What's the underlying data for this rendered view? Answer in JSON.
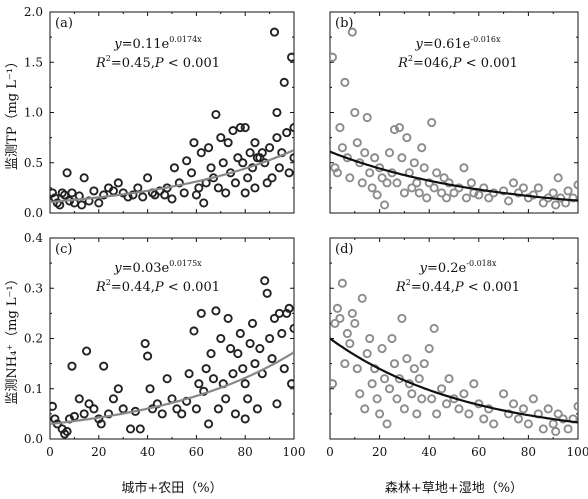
{
  "chart_data": [
    {
      "panel_label": "(a)",
      "type": "scatter",
      "marker_color": "#222222",
      "fit_color": "#888888",
      "xlim": [
        0,
        100
      ],
      "ylim": [
        0,
        2.0
      ],
      "xticks": [
        "0",
        "20",
        "40",
        "60",
        "80",
        "100"
      ],
      "yticks": [
        "0.0",
        "0.5",
        "1.0",
        "1.5",
        "2.0"
      ],
      "ylabel": "监测TP（mg L⁻¹）",
      "equation": {
        "lhs": "y",
        "rhs": "=0.11e",
        "exp": "0.0174x"
      },
      "stats": {
        "lhs": "R",
        "sup": "2",
        "rhs": "=0.45,",
        "p": "P",
        "ptail": "< 0.001"
      },
      "fit": {
        "a": 0.11,
        "b": 0.0174
      },
      "points": [
        [
          1,
          0.2
        ],
        [
          2,
          0.15
        ],
        [
          3,
          0.1
        ],
        [
          4,
          0.08
        ],
        [
          5,
          0.2
        ],
        [
          6,
          0.18
        ],
        [
          7,
          0.4
        ],
        [
          8,
          0.12
        ],
        [
          9,
          0.2
        ],
        [
          10,
          0.1
        ],
        [
          12,
          0.17
        ],
        [
          13,
          0.08
        ],
        [
          14,
          0.35
        ],
        [
          16,
          0.12
        ],
        [
          18,
          0.22
        ],
        [
          20,
          0.1
        ],
        [
          22,
          0.18
        ],
        [
          24,
          0.25
        ],
        [
          26,
          0.22
        ],
        [
          28,
          0.3
        ],
        [
          30,
          0.2
        ],
        [
          32,
          0.16
        ],
        [
          34,
          0.18
        ],
        [
          36,
          0.25
        ],
        [
          38,
          0.16
        ],
        [
          40,
          0.35
        ],
        [
          42,
          0.2
        ],
        [
          43,
          0.18
        ],
        [
          45,
          0.22
        ],
        [
          47,
          0.18
        ],
        [
          48,
          0.25
        ],
        [
          50,
          0.14
        ],
        [
          51,
          0.45
        ],
        [
          53,
          0.3
        ],
        [
          55,
          0.2
        ],
        [
          56,
          0.52
        ],
        [
          58,
          0.4
        ],
        [
          59,
          0.7
        ],
        [
          60,
          0.18
        ],
        [
          61,
          0.25
        ],
        [
          62,
          0.6
        ],
        [
          63,
          0.1
        ],
        [
          64,
          0.3
        ],
        [
          65,
          0.65
        ],
        [
          66,
          0.45
        ],
        [
          67,
          0.35
        ],
        [
          68,
          0.98
        ],
        [
          69,
          0.25
        ],
        [
          70,
          0.75
        ],
        [
          71,
          0.5
        ],
        [
          72,
          0.2
        ],
        [
          73,
          0.7
        ],
        [
          74,
          0.4
        ],
        [
          75,
          0.82
        ],
        [
          76,
          0.3
        ],
        [
          77,
          0.55
        ],
        [
          78,
          0.85
        ],
        [
          79,
          0.5
        ],
        [
          80,
          0.2
        ],
        [
          80,
          0.85
        ],
        [
          81,
          0.35
        ],
        [
          82,
          0.6
        ],
        [
          83,
          0.45
        ],
        [
          84,
          0.25
        ],
        [
          84,
          0.7
        ],
        [
          85,
          0.55
        ],
        [
          86,
          0.55
        ],
        [
          87,
          0.6
        ],
        [
          88,
          0.5
        ],
        [
          89,
          0.3
        ],
        [
          90,
          0.65
        ],
        [
          91,
          0.35
        ],
        [
          92,
          1.8
        ],
        [
          93,
          0.75
        ],
        [
          93,
          1.0
        ],
        [
          94,
          0.45
        ],
        [
          95,
          0.6
        ],
        [
          96,
          1.3
        ],
        [
          97,
          0.8
        ],
        [
          98,
          0.4
        ],
        [
          99,
          1.55
        ],
        [
          100,
          0.55
        ],
        [
          100,
          0.85
        ]
      ]
    },
    {
      "panel_label": "(b)",
      "type": "scatter",
      "marker_color": "#8c8c8c",
      "fit_color": "#111111",
      "xlim": [
        0,
        100
      ],
      "ylim": [
        0,
        2.0
      ],
      "xticks": [
        "0",
        "20",
        "40",
        "60",
        "80",
        "100"
      ],
      "yticks": [],
      "ylabel": "",
      "equation": {
        "lhs": "y",
        "rhs": "=0.61e",
        "exp": "-0.016x"
      },
      "stats": {
        "lhs": "R",
        "sup": "2",
        "rhs": "=046,",
        "p": "P",
        "ptail": "< 0.001"
      },
      "fit": {
        "a": 0.61,
        "b": -0.016
      },
      "points": [
        [
          1,
          1.55
        ],
        [
          2,
          0.45
        ],
        [
          3,
          0.4
        ],
        [
          4,
          0.85
        ],
        [
          5,
          0.65
        ],
        [
          6,
          1.3
        ],
        [
          7,
          0.55
        ],
        [
          8,
          0.35
        ],
        [
          9,
          1.8
        ],
        [
          10,
          1.0
        ],
        [
          11,
          0.7
        ],
        [
          12,
          0.5
        ],
        [
          13,
          0.3
        ],
        [
          14,
          0.6
        ],
        [
          15,
          0.95
        ],
        [
          16,
          0.4
        ],
        [
          17,
          0.25
        ],
        [
          18,
          0.55
        ],
        [
          19,
          0.18
        ],
        [
          20,
          0.45
        ],
        [
          21,
          0.35
        ],
        [
          22,
          0.08
        ],
        [
          23,
          0.3
        ],
        [
          24,
          0.6
        ],
        [
          25,
          0.4
        ],
        [
          26,
          0.83
        ],
        [
          27,
          0.3
        ],
        [
          28,
          0.85
        ],
        [
          29,
          0.55
        ],
        [
          30,
          0.2
        ],
        [
          31,
          0.75
        ],
        [
          32,
          0.4
        ],
        [
          33,
          0.25
        ],
        [
          34,
          0.5
        ],
        [
          35,
          0.3
        ],
        [
          36,
          0.2
        ],
        [
          37,
          0.65
        ],
        [
          38,
          0.45
        ],
        [
          39,
          0.15
        ],
        [
          40,
          0.3
        ],
        [
          41,
          0.9
        ],
        [
          42,
          0.25
        ],
        [
          43,
          0.4
        ],
        [
          45,
          0.2
        ],
        [
          46,
          0.35
        ],
        [
          47,
          0.15
        ],
        [
          48,
          0.3
        ],
        [
          50,
          0.2
        ],
        [
          52,
          0.25
        ],
        [
          54,
          0.45
        ],
        [
          55,
          0.15
        ],
        [
          57,
          0.3
        ],
        [
          58,
          0.2
        ],
        [
          60,
          0.18
        ],
        [
          62,
          0.25
        ],
        [
          64,
          0.15
        ],
        [
          66,
          0.2
        ],
        [
          70,
          0.22
        ],
        [
          72,
          0.12
        ],
        [
          74,
          0.3
        ],
        [
          76,
          0.2
        ],
        [
          78,
          0.25
        ],
        [
          80,
          0.15
        ],
        [
          82,
          0.18
        ],
        [
          84,
          0.25
        ],
        [
          86,
          0.1
        ],
        [
          88,
          0.15
        ],
        [
          90,
          0.2
        ],
        [
          91,
          0.08
        ],
        [
          92,
          0.35
        ],
        [
          93,
          0.15
        ],
        [
          95,
          0.1
        ],
        [
          96,
          0.22
        ],
        [
          98,
          0.15
        ],
        [
          100,
          0.28
        ]
      ]
    },
    {
      "panel_label": "(c)",
      "type": "scatter",
      "marker_color": "#222222",
      "fit_color": "#888888",
      "xlim": [
        0,
        100
      ],
      "ylim": [
        0,
        0.4
      ],
      "xticks": [
        "0",
        "20",
        "40",
        "60",
        "80",
        "100"
      ],
      "yticks": [
        "0.0",
        "0.1",
        "0.2",
        "0.3",
        "0.4"
      ],
      "ylabel": "监测NH₄⁺（mg L⁻¹）",
      "equation": {
        "lhs": "y",
        "rhs": "=0.03e",
        "exp": "0.0175x"
      },
      "stats": {
        "lhs": "R",
        "sup": "2",
        "rhs": "=0.44,",
        "p": "P",
        "ptail": "< 0.001"
      },
      "fit": {
        "a": 0.03,
        "b": 0.0175
      },
      "points": [
        [
          1,
          0.065
        ],
        [
          2,
          0.04
        ],
        [
          3,
          0.03
        ],
        [
          5,
          0.02
        ],
        [
          6,
          0.01
        ],
        [
          7,
          0.015
        ],
        [
          8,
          0.04
        ],
        [
          9,
          0.145
        ],
        [
          10,
          0.045
        ],
        [
          12,
          0.08
        ],
        [
          14,
          0.05
        ],
        [
          15,
          0.175
        ],
        [
          16,
          0.07
        ],
        [
          18,
          0.06
        ],
        [
          20,
          0.04
        ],
        [
          21,
          0.03
        ],
        [
          22,
          0.145
        ],
        [
          24,
          0.05
        ],
        [
          26,
          0.08
        ],
        [
          28,
          0.1
        ],
        [
          30,
          0.06
        ],
        [
          33,
          0.02
        ],
        [
          35,
          0.055
        ],
        [
          37,
          0.02
        ],
        [
          39,
          0.19
        ],
        [
          40,
          0.165
        ],
        [
          41,
          0.1
        ],
        [
          42,
          0.06
        ],
        [
          44,
          0.07
        ],
        [
          46,
          0.05
        ],
        [
          48,
          0.12
        ],
        [
          50,
          0.08
        ],
        [
          52,
          0.06
        ],
        [
          54,
          0.05
        ],
        [
          56,
          0.075
        ],
        [
          57,
          0.13
        ],
        [
          59,
          0.215
        ],
        [
          60,
          0.06
        ],
        [
          61,
          0.11
        ],
        [
          62,
          0.25
        ],
        [
          63,
          0.095
        ],
        [
          64,
          0.14
        ],
        [
          65,
          0.03
        ],
        [
          66,
          0.17
        ],
        [
          67,
          0.12
        ],
        [
          68,
          0.255
        ],
        [
          69,
          0.06
        ],
        [
          70,
          0.2
        ],
        [
          71,
          0.11
        ],
        [
          72,
          0.08
        ],
        [
          73,
          0.24
        ],
        [
          74,
          0.18
        ],
        [
          75,
          0.13
        ],
        [
          76,
          0.05
        ],
        [
          77,
          0.17
        ],
        [
          78,
          0.21
        ],
        [
          79,
          0.14
        ],
        [
          80,
          0.04
        ],
        [
          80,
          0.11
        ],
        [
          81,
          0.08
        ],
        [
          82,
          0.19
        ],
        [
          83,
          0.23
        ],
        [
          84,
          0.15
        ],
        [
          85,
          0.06
        ],
        [
          86,
          0.18
        ],
        [
          87,
          0.13
        ],
        [
          88,
          0.315
        ],
        [
          89,
          0.29
        ],
        [
          90,
          0.2
        ],
        [
          91,
          0.16
        ],
        [
          92,
          0.24
        ],
        [
          93,
          0.07
        ],
        [
          94,
          0.25
        ],
        [
          95,
          0.21
        ],
        [
          96,
          0.14
        ],
        [
          97,
          0.25
        ],
        [
          98,
          0.26
        ],
        [
          99,
          0.11
        ],
        [
          100,
          0.22
        ]
      ]
    },
    {
      "panel_label": "(d)",
      "type": "scatter",
      "marker_color": "#8c8c8c",
      "fit_color": "#111111",
      "xlim": [
        0,
        100
      ],
      "ylim": [
        0,
        0.4
      ],
      "xticks": [
        "0",
        "20",
        "40",
        "60",
        "80",
        "100"
      ],
      "yticks": [],
      "ylabel": "",
      "equation": {
        "lhs": "y",
        "rhs": "=0.2e",
        "exp": "-0.018x"
      },
      "stats": {
        "lhs": "R",
        "sup": "2",
        "rhs": "=0.44,",
        "p": "P",
        "ptail": "< 0.001"
      },
      "fit": {
        "a": 0.2,
        "b": -0.018
      },
      "points": [
        [
          1,
          0.11
        ],
        [
          2,
          0.23
        ],
        [
          3,
          0.26
        ],
        [
          4,
          0.24
        ],
        [
          5,
          0.31
        ],
        [
          6,
          0.15
        ],
        [
          7,
          0.21
        ],
        [
          8,
          0.19
        ],
        [
          9,
          0.25
        ],
        [
          10,
          0.23
        ],
        [
          11,
          0.14
        ],
        [
          12,
          0.09
        ],
        [
          13,
          0.28
        ],
        [
          14,
          0.06
        ],
        [
          15,
          0.17
        ],
        [
          16,
          0.2
        ],
        [
          17,
          0.11
        ],
        [
          18,
          0.14
        ],
        [
          19,
          0.08
        ],
        [
          20,
          0.05
        ],
        [
          21,
          0.18
        ],
        [
          22,
          0.12
        ],
        [
          23,
          0.03
        ],
        [
          24,
          0.1
        ],
        [
          25,
          0.2
        ],
        [
          26,
          0.15
        ],
        [
          27,
          0.08
        ],
        [
          28,
          0.12
        ],
        [
          29,
          0.24
        ],
        [
          30,
          0.06
        ],
        [
          31,
          0.16
        ],
        [
          32,
          0.11
        ],
        [
          33,
          0.09
        ],
        [
          34,
          0.14
        ],
        [
          35,
          0.05
        ],
        [
          36,
          0.12
        ],
        [
          37,
          0.08
        ],
        [
          38,
          0.15
        ],
        [
          40,
          0.18
        ],
        [
          41,
          0.08
        ],
        [
          42,
          0.22
        ],
        [
          43,
          0.05
        ],
        [
          45,
          0.1
        ],
        [
          47,
          0.07
        ],
        [
          48,
          0.12
        ],
        [
          50,
          0.08
        ],
        [
          52,
          0.06
        ],
        [
          54,
          0.09
        ],
        [
          56,
          0.05
        ],
        [
          58,
          0.11
        ],
        [
          60,
          0.07
        ],
        [
          62,
          0.04
        ],
        [
          64,
          0.06
        ],
        [
          66,
          0.03
        ],
        [
          70,
          0.09
        ],
        [
          72,
          0.05
        ],
        [
          74,
          0.07
        ],
        [
          76,
          0.04
        ],
        [
          78,
          0.06
        ],
        [
          80,
          0.03
        ],
        [
          82,
          0.08
        ],
        [
          84,
          0.05
        ],
        [
          86,
          0.02
        ],
        [
          88,
          0.06
        ],
        [
          90,
          0.03
        ],
        [
          91,
          0.015
        ],
        [
          92,
          0.05
        ],
        [
          94,
          0.04
        ],
        [
          96,
          0.02
        ],
        [
          98,
          0.04
        ],
        [
          100,
          0.065
        ]
      ]
    }
  ],
  "x_axis_labels": {
    "left": "城市+农田（%）",
    "right": "森林+草地+湿地（%）"
  }
}
